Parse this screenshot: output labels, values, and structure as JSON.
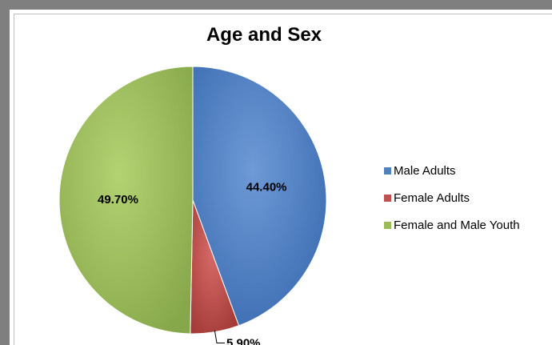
{
  "chart_data": {
    "type": "pie",
    "title": "Age and Sex",
    "legend_position": "right",
    "slices": [
      {
        "name": "Male Adults",
        "value": 44.4,
        "label": "44.40%",
        "color": "#4f81bd"
      },
      {
        "name": "Female Adults",
        "value": 5.9,
        "label": "5.90%",
        "color": "#c0504d"
      },
      {
        "name": "Female and Male Youth",
        "value": 49.7,
        "label": "49.70%",
        "color": "#9bbb59"
      }
    ]
  }
}
